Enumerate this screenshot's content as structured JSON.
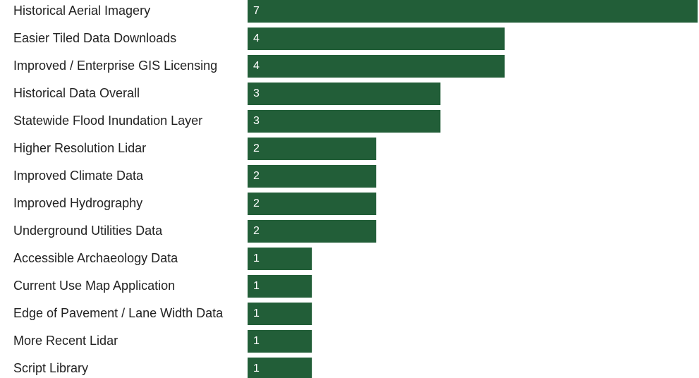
{
  "chart_data": {
    "type": "bar",
    "orientation": "horizontal",
    "categories": [
      "Historical Aerial Imagery",
      "Easier Tiled Data Downloads",
      "Improved / Enterprise GIS Licensing",
      "Historical Data Overall",
      "Statewide Flood Inundation Layer",
      "Higher Resolution Lidar",
      "Improved Climate Data",
      "Improved Hydrography",
      "Underground Utilities Data",
      "Accessible Archaeology Data",
      "Current Use Map Application",
      "Edge of Pavement / Lane Width Data",
      "More Recent Lidar",
      "Script Library"
    ],
    "values": [
      7,
      4,
      4,
      3,
      3,
      2,
      2,
      2,
      2,
      1,
      1,
      1,
      1,
      1
    ],
    "color": "#225e38"
  }
}
